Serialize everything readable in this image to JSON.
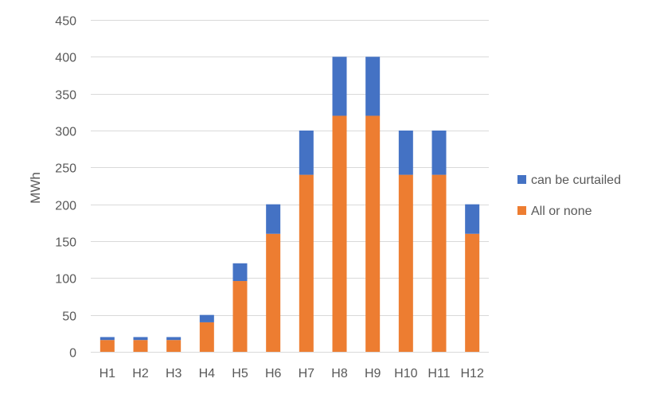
{
  "chart_data": {
    "type": "bar",
    "stacked": true,
    "categories": [
      "H1",
      "H2",
      "H3",
      "H4",
      "H5",
      "H6",
      "H7",
      "H8",
      "H9",
      "H10",
      "H11",
      "H12"
    ],
    "series": [
      {
        "name": "All or none",
        "color": "#ED7D31",
        "values": [
          16,
          16,
          16,
          40,
          96,
          160,
          240,
          320,
          320,
          240,
          240,
          160
        ]
      },
      {
        "name": "can be curtailed",
        "color": "#4472C4",
        "values": [
          4,
          4,
          4,
          10,
          24,
          40,
          60,
          80,
          80,
          60,
          60,
          40
        ]
      }
    ],
    "ylabel": "MWh",
    "ylim": [
      0,
      450
    ],
    "yticks": [
      0,
      50,
      100,
      150,
      200,
      250,
      300,
      350,
      400,
      450
    ],
    "grid": true,
    "legend_position": "right",
    "legend_order": [
      "can be curtailed",
      "All or none"
    ]
  }
}
